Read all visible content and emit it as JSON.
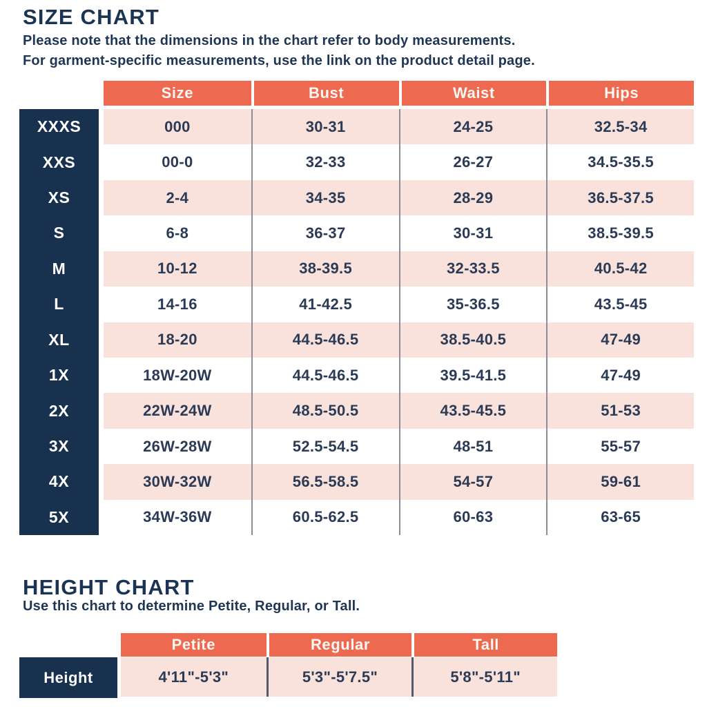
{
  "size_chart": {
    "title": "SIZE CHART",
    "note_line1": "Please note that the dimensions in the chart refer to body measurements.",
    "note_line2": "For garment-specific measurements, use the link on the product detail page.",
    "columns": [
      "Size",
      "Bust",
      "Waist",
      "Hips"
    ],
    "rows": [
      {
        "label": "XXXS",
        "size": "000",
        "bust": "30-31",
        "waist": "24-25",
        "hips": "32.5-34"
      },
      {
        "label": "XXS",
        "size": "00-0",
        "bust": "32-33",
        "waist": "26-27",
        "hips": "34.5-35.5"
      },
      {
        "label": "XS",
        "size": "2-4",
        "bust": "34-35",
        "waist": "28-29",
        "hips": "36.5-37.5"
      },
      {
        "label": "S",
        "size": "6-8",
        "bust": "36-37",
        "waist": "30-31",
        "hips": "38.5-39.5"
      },
      {
        "label": "M",
        "size": "10-12",
        "bust": "38-39.5",
        "waist": "32-33.5",
        "hips": "40.5-42"
      },
      {
        "label": "L",
        "size": "14-16",
        "bust": "41-42.5",
        "waist": "35-36.5",
        "hips": "43.5-45"
      },
      {
        "label": "XL",
        "size": "18-20",
        "bust": "44.5-46.5",
        "waist": "38.5-40.5",
        "hips": "47-49"
      },
      {
        "label": "1X",
        "size": "18W-20W",
        "bust": "44.5-46.5",
        "waist": "39.5-41.5",
        "hips": "47-49"
      },
      {
        "label": "2X",
        "size": "22W-24W",
        "bust": "48.5-50.5",
        "waist": "43.5-45.5",
        "hips": "51-53"
      },
      {
        "label": "3X",
        "size": "26W-28W",
        "bust": "52.5-54.5",
        "waist": "48-51",
        "hips": "55-57"
      },
      {
        "label": "4X",
        "size": "30W-32W",
        "bust": "56.5-58.5",
        "waist": "54-57",
        "hips": "59-61"
      },
      {
        "label": "5X",
        "size": "34W-36W",
        "bust": "60.5-62.5",
        "waist": "60-63",
        "hips": "63-65"
      }
    ]
  },
  "height_chart": {
    "title": "HEIGHT CHART",
    "note": "Use this chart to determine Petite, Regular, or Tall.",
    "columns": [
      "Petite",
      "Regular",
      "Tall"
    ],
    "row_label": "Height",
    "values": [
      "4'11\"-5'3\"",
      "5'3\"-5'7.5\"",
      "5'8\"-5'11\""
    ]
  },
  "colors": {
    "header_coral": "#ED6A50",
    "row_pink": "#F9E2DC",
    "label_navy": "#17314E",
    "text_navy": "#2B3A55",
    "divider_gray": "#8C8C96"
  }
}
